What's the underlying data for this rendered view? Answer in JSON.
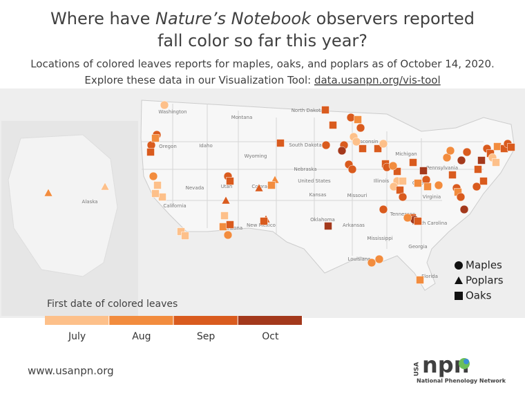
{
  "title": {
    "lines": [
      [
        "Where have ",
        "Nature’s Notebook",
        " observers reported"
      ],
      [
        "fall color so far this year?"
      ]
    ]
  },
  "subtitle": [
    "Locations of colored leaves reports for maples, oaks, and poplars as of October 14, 2020.",
    "Explore these data in our Visualization  Tool: "
  ],
  "link": "data.usanpn.org/vis-tool",
  "map_labels": [
    "Washington",
    "Oregon",
    "Idaho",
    "Montana",
    "North Dakota",
    "South Dakota",
    "Wyoming",
    "Nevada",
    "Utah",
    "California",
    "Colorado",
    "Nebraska",
    "United States",
    "Kansas",
    "Missouri",
    "Illinois",
    "Oklahoma",
    "Arkansas",
    "New Mexico",
    "Arizona",
    "Wisconsin",
    "Michigan",
    "Ohio",
    "Pennsylvania",
    "Virginia",
    "Tennessee",
    "North Carolina",
    "Georgia",
    "Mississippi",
    "Louisiana",
    "Florida",
    "Alaska"
  ],
  "shape_legend": [
    "Maples",
    "Poplars",
    "Oaks"
  ],
  "color_legend": {
    "title": "First date of colored leaves",
    "months": [
      "July",
      "Aug",
      "Sep",
      "Oct"
    ],
    "colors": [
      "#fdc08a",
      "#f28c3e",
      "#d95b1e",
      "#a3391c"
    ]
  },
  "footer": {
    "url": "www.usanpn.org",
    "logo_usa": "USA",
    "logo_npn": "npn",
    "logo_name": "National Phenology Network"
  }
}
